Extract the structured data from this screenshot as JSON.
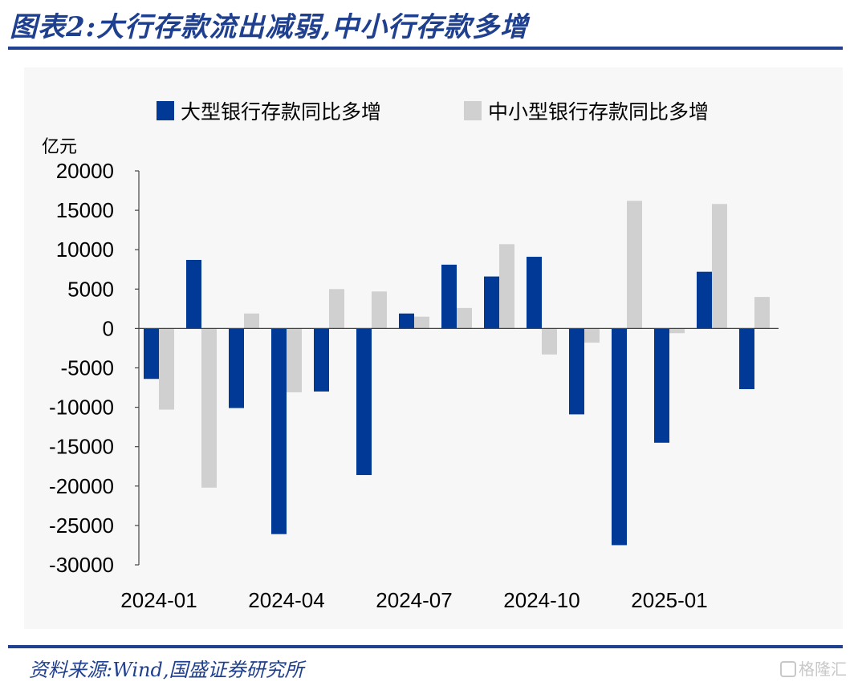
{
  "header": {
    "title": "图表2:大行存款流出减弱,中小行存款多增"
  },
  "footer": {
    "source": "资料来源:Wind,国盛证券研究所",
    "watermark": "格隆汇"
  },
  "colors": {
    "title": "#1f3f8f",
    "large_bank": "#003a96",
    "small_bank": "#d0d0d0"
  },
  "chart_data": {
    "type": "bar",
    "unit_label": "亿元",
    "categories": [
      "2024-01",
      "2024-02",
      "2024-03",
      "2024-04",
      "2024-05",
      "2024-06",
      "2024-07",
      "2024-08",
      "2024-09",
      "2024-10",
      "2024-11",
      "2024-12",
      "2025-01",
      "2025-02",
      "2025-03"
    ],
    "x_tick_labels": [
      "2024-01",
      "2024-04",
      "2024-07",
      "2024-10",
      "2025-01"
    ],
    "series": [
      {
        "name": "大型银行存款同比多增",
        "color": "#003a96",
        "values": [
          -6400,
          8700,
          -10100,
          -26100,
          -8000,
          -18600,
          1900,
          8100,
          6600,
          9100,
          -10900,
          -27500,
          -14500,
          7200,
          -7700
        ]
      },
      {
        "name": "中小型银行存款同比多增",
        "color": "#d0d0d0",
        "values": [
          -10300,
          -20200,
          1900,
          -8100,
          5000,
          4700,
          1500,
          2600,
          10700,
          -3300,
          -1800,
          16200,
          -600,
          15800,
          4000
        ]
      }
    ],
    "ylim": [
      -30000,
      20000
    ],
    "y_ticks": [
      20000,
      15000,
      10000,
      5000,
      0,
      -5000,
      -10000,
      -15000,
      -20000,
      -25000,
      -30000
    ],
    "legend": "top",
    "grid": false
  }
}
